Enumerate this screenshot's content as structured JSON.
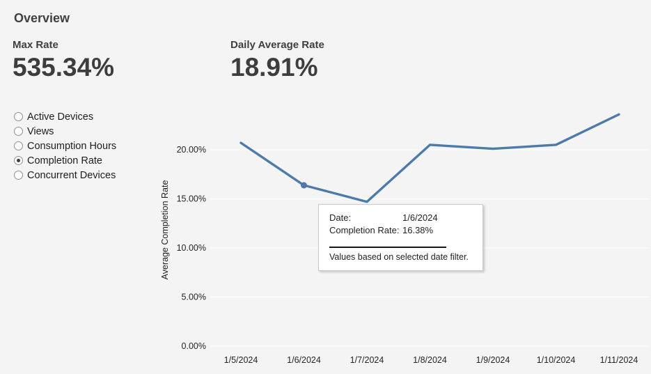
{
  "page": {
    "title": "Overview"
  },
  "kpis": [
    {
      "label": "Max Rate",
      "value": "535.34%"
    },
    {
      "label": "Daily Average Rate",
      "value": "18.91%"
    }
  ],
  "metric_selector": {
    "options": [
      {
        "label": "Active Devices",
        "selected": false
      },
      {
        "label": "Views",
        "selected": false
      },
      {
        "label": "Consumption Hours",
        "selected": false
      },
      {
        "label": "Completion Rate",
        "selected": true
      },
      {
        "label": "Concurrent Devices",
        "selected": false
      }
    ]
  },
  "tooltip": {
    "rows": [
      {
        "label": "Date:",
        "value": "1/6/2024"
      },
      {
        "label": "Completion Rate:",
        "value": "16.38%"
      }
    ],
    "note": "Values based on selected date filter."
  },
  "chart_data": {
    "type": "line",
    "title": "",
    "xlabel": "",
    "ylabel": "Average Completion Rate",
    "x": [
      "1/5/2024",
      "1/6/2024",
      "1/7/2024",
      "1/8/2024",
      "1/9/2024",
      "1/10/2024",
      "1/11/2024"
    ],
    "series": [
      {
        "name": "Average Completion Rate",
        "values": [
          20.7,
          16.38,
          14.7,
          20.5,
          20.1,
          20.5,
          23.6
        ]
      }
    ],
    "yticks": [
      {
        "label": "0.00%",
        "value": 0
      },
      {
        "label": "5.00%",
        "value": 5
      },
      {
        "label": "10.00%",
        "value": 10
      },
      {
        "label": "15.00%",
        "value": 15
      },
      {
        "label": "20.00%",
        "value": 20
      }
    ],
    "ylim": [
      0,
      24.6
    ],
    "grid": true,
    "legend_position": "none",
    "line_color": "#4d7aa9",
    "highlight_index": 1,
    "highlighted_point": {
      "x": "1/6/2024",
      "value": 16.38
    }
  }
}
